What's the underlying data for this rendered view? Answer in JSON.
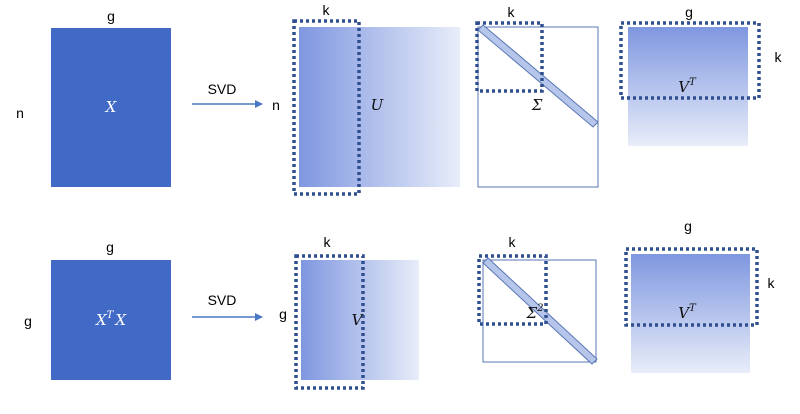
{
  "colors": {
    "solid_matrix": "#4169c6",
    "gradient_start": "#7f97e0",
    "gradient_end": "#e8edf9",
    "dotted_border": "#2f4f8f",
    "arrow": "#4a78c2",
    "diagonal_fill": "#b6c6ea",
    "diagonal_stroke": "#5a77b5"
  },
  "top_row": {
    "input_matrix": {
      "label": "X",
      "cols_label": "g",
      "rows_label": "n"
    },
    "arrow_label": "SVD",
    "u_matrix": {
      "label": "U",
      "rows_label": "n",
      "cols_label": "k"
    },
    "sigma_matrix": {
      "label": "Σ",
      "cols_label": "k"
    },
    "vt_matrix": {
      "label": "V",
      "label_sup": "T",
      "cols_label": "g",
      "rows_label": "k"
    }
  },
  "bottom_row": {
    "input_matrix": {
      "label": "X",
      "label_sup": "T",
      "label_after": "X",
      "cols_label": "g",
      "rows_label": "g"
    },
    "arrow_label": "SVD",
    "v_matrix": {
      "label": "V",
      "rows_label": "g",
      "cols_label": "k"
    },
    "sigma_matrix": {
      "label": "Σ",
      "label_sup": "2",
      "cols_label": "k"
    },
    "vt_matrix": {
      "label": "V",
      "label_sup": "T",
      "cols_label": "g",
      "rows_label": "k"
    }
  }
}
